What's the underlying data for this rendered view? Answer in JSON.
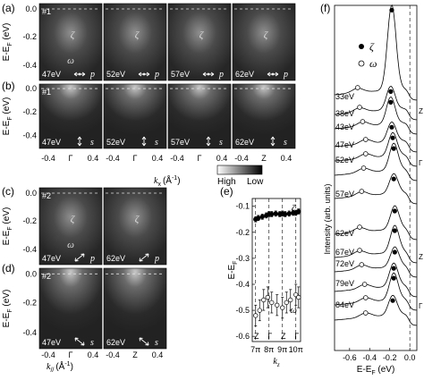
{
  "panel_labels": {
    "a": "(a)",
    "b": "(b)",
    "c": "(c)",
    "d": "(d)",
    "e": "(e)",
    "f": "(f)"
  },
  "ylabel_ef": "E-E",
  "ylabel_ef_sub": "F",
  "ylabel_ef_unit": "(eV)",
  "ytick_00": "0.0",
  "ytick_02": "-0.2",
  "ytick_04": "-0.4",
  "sample1": "#1",
  "sample2": "#2",
  "zeta": "ζ",
  "omega": "ω",
  "pol_p": "p",
  "pol_s": "s",
  "row_a_energies": [
    "47eV",
    "52eV",
    "57eV",
    "62eV"
  ],
  "row_b_energies": [
    "47eV",
    "52eV",
    "57eV",
    "62eV"
  ],
  "row_c_energies": [
    "47eV",
    "62eV"
  ],
  "row_d_energies": [
    "47eV",
    "62eV"
  ],
  "kx_ticks": [
    "-0.4",
    "Γ",
    "0.4",
    "-0.4",
    "Γ",
    "0.4",
    "-0.4",
    "Γ",
    "0.4",
    "-0.4",
    "Z",
    "0.4"
  ],
  "kx_label": "k",
  "kx_label_sub": "x",
  "kx_label_unit": "(Å",
  "kx_label_exp": "-1",
  "kx_label_close": ")",
  "colorbar_high": "High",
  "colorbar_low": "Low",
  "ky_ticks": [
    "-0.4",
    "Γ",
    "0.4",
    "-0.4",
    "Z",
    "0.4"
  ],
  "ky_label": "k",
  "ky_label_sub": "//",
  "ky_label_unit": "(Å",
  "ky_label_exp": "-1",
  "ky_label_close": ")",
  "chart_data": [
    {
      "type": "scatter",
      "panel": "(e)",
      "ylabel": "E-E",
      "ylabel_sub": "F",
      "ylabel_unit": "(eV)",
      "xlabel": "k",
      "xlabel_sub": "z",
      "yticks": [
        "-0.1",
        "-0.2",
        "-0.3",
        "-0.4",
        "-0.5",
        "-0.6"
      ],
      "ylim": [
        -0.62,
        -0.07
      ],
      "xticks": [
        "7π",
        "8π",
        "9π",
        "10π"
      ],
      "xtick_values": [
        7,
        8,
        9,
        10
      ],
      "xlim": [
        6.75,
        10.35
      ],
      "sym_labels": [
        "Z",
        "Γ",
        "Z",
        "Γ"
      ],
      "sym_values": [
        7,
        8,
        9,
        10
      ],
      "legend": {
        "zeta": "ζ",
        "omega": "ω"
      },
      "series": [
        {
          "name": "ζ",
          "marker": "filled",
          "x": [
            7.0,
            7.2,
            7.5,
            7.8,
            8.0,
            8.2,
            8.5,
            8.8,
            9.0,
            9.2,
            9.5,
            9.8,
            10.0,
            10.2
          ],
          "y": [
            -0.15,
            -0.145,
            -0.14,
            -0.135,
            -0.13,
            -0.13,
            -0.128,
            -0.13,
            -0.128,
            -0.13,
            -0.128,
            -0.125,
            -0.125,
            -0.12
          ],
          "err": 0.01
        },
        {
          "name": "ω",
          "marker": "open",
          "x": [
            7.0,
            7.3,
            7.6,
            7.9,
            8.2,
            8.6,
            9.0,
            9.3,
            9.6,
            10.0,
            10.2
          ],
          "y": [
            -0.52,
            -0.5,
            -0.46,
            -0.45,
            -0.47,
            -0.48,
            -0.49,
            -0.47,
            -0.46,
            -0.44,
            -0.45
          ],
          "err": 0.04
        }
      ]
    },
    {
      "type": "line",
      "panel": "(f)",
      "ylabel": "Intensity (arb. units)",
      "xlabel": "E-E",
      "xlabel_sub": "F",
      "xlabel_unit": "(eV)",
      "xticks": [
        "-0.6",
        "-0.4",
        "-0.2",
        "0.0"
      ],
      "xtick_values": [
        -0.6,
        -0.4,
        -0.2,
        0.0
      ],
      "xlim": [
        -0.75,
        0.07
      ],
      "legend": {
        "zeta": "ζ",
        "omega": "ω"
      },
      "curves": [
        {
          "label": "33eV",
          "zeta_e": -0.18,
          "omega_e": -0.52
        },
        {
          "label": "38eV",
          "zeta_e": -0.19,
          "omega_e": -0.5
        },
        {
          "label": "43eV",
          "zeta_e": -0.19,
          "omega_e": -0.47
        },
        {
          "label": "47eV",
          "zeta_e": -0.18,
          "omega_e": -0.44
        },
        {
          "label": "52eV",
          "zeta_e": -0.17,
          "omega_e": -0.44
        },
        {
          "label": "",
          "zeta_e": -0.16,
          "omega_e": -0.46
        },
        {
          "label": "57eV",
          "zeta_e": -0.16,
          "omega_e": -0.48
        },
        {
          "label": "62eV",
          "zeta_e": -0.15,
          "omega_e": -0.5
        },
        {
          "label": "67eV",
          "zeta_e": -0.15,
          "omega_e": -0.5
        },
        {
          "label": "72eV",
          "zeta_e": -0.15,
          "omega_e": -0.48
        },
        {
          "label": "79eV",
          "zeta_e": -0.16,
          "omega_e": -0.45
        },
        {
          "label": "",
          "zeta_e": -0.16,
          "omega_e": -0.44
        },
        {
          "label": "84eV",
          "zeta_e": -0.17,
          "omega_e": -0.44
        }
      ],
      "side_labels": [
        "Z",
        "Γ",
        "Z",
        "Γ"
      ]
    }
  ]
}
